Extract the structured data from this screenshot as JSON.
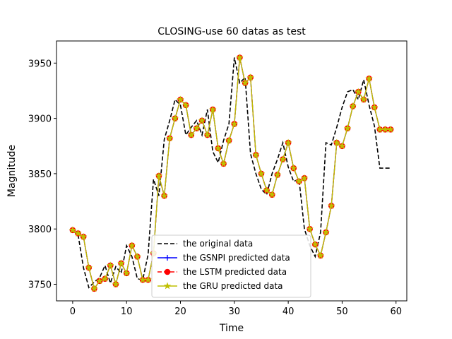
{
  "chart_data": {
    "type": "line",
    "title": "CLOSING-use 60 datas as test",
    "xlabel": "Time",
    "ylabel": "Magnitude",
    "xlim": [
      -3,
      62
    ],
    "ylim": [
      3735,
      3970
    ],
    "xticks": [
      0,
      10,
      20,
      30,
      40,
      50,
      60
    ],
    "yticks": [
      3750,
      3800,
      3850,
      3900,
      3950
    ],
    "grid": false,
    "legend_position": "lower-center",
    "x": [
      0,
      1,
      2,
      3,
      4,
      5,
      6,
      7,
      8,
      9,
      10,
      11,
      12,
      13,
      14,
      15,
      16,
      17,
      18,
      19,
      20,
      21,
      22,
      23,
      24,
      25,
      26,
      27,
      28,
      29,
      30,
      31,
      32,
      33,
      34,
      35,
      36,
      37,
      38,
      39,
      40,
      41,
      42,
      43,
      44,
      45,
      46,
      47,
      48,
      49,
      50,
      51,
      52,
      53,
      54,
      55,
      56,
      57,
      58,
      59
    ],
    "series": [
      {
        "name": "the original data",
        "color": "#000000",
        "style": "dashed",
        "marker": "none",
        "values": [
          3798,
          3795,
          3765,
          3747,
          3752,
          3756,
          3767,
          3751,
          3766,
          3760,
          3785,
          3775,
          3755,
          3754,
          3777,
          3845,
          3830,
          3881,
          3898,
          3917,
          3912,
          3885,
          3892,
          3898,
          3885,
          3908,
          3870,
          3860,
          3880,
          3895,
          3955,
          3932,
          3937,
          3868,
          3850,
          3836,
          3831,
          3850,
          3863,
          3878,
          3856,
          3843,
          3845,
          3800,
          3785,
          3775,
          3797,
          3878,
          3876,
          3892,
          3910,
          3924,
          3926,
          3917,
          3935,
          3912,
          3893,
          3855,
          3855,
          3855
        ]
      },
      {
        "name": "the GSNPI predicted data",
        "color": "#0000ff",
        "style": "solid",
        "marker": "plus",
        "values": [
          3799,
          3796,
          3793,
          3765,
          3746,
          3753,
          3755,
          3767,
          3750,
          3769,
          3760,
          3785,
          3775,
          3754,
          3754,
          3778,
          3848,
          3830,
          3882,
          3900,
          3917,
          3912,
          3885,
          3891,
          3898,
          3885,
          3908,
          3873,
          3859,
          3880,
          3895,
          3955,
          3932,
          3937,
          3867,
          3850,
          3835,
          3831,
          3849,
          3863,
          3878,
          3855,
          3843,
          3846,
          3800,
          3786,
          3776,
          3797,
          3821,
          3878,
          3875,
          3891,
          3911,
          3924,
          3917,
          3936,
          3910,
          3890,
          3890,
          3890
        ]
      },
      {
        "name": "the LSTM predicted data",
        "color": "#ff0000",
        "style": "dashed",
        "marker": "circle",
        "values": [
          3799,
          3796,
          3793,
          3765,
          3746,
          3753,
          3755,
          3767,
          3750,
          3769,
          3760,
          3785,
          3775,
          3754,
          3754,
          3778,
          3848,
          3830,
          3882,
          3900,
          3917,
          3912,
          3885,
          3891,
          3898,
          3885,
          3908,
          3873,
          3859,
          3880,
          3895,
          3955,
          3932,
          3937,
          3867,
          3850,
          3835,
          3831,
          3849,
          3863,
          3878,
          3855,
          3843,
          3846,
          3800,
          3786,
          3776,
          3797,
          3821,
          3878,
          3875,
          3891,
          3911,
          3924,
          3917,
          3936,
          3910,
          3890,
          3890,
          3890
        ]
      },
      {
        "name": "the GRU predicted data",
        "color": "#bfbf00",
        "style": "solid",
        "marker": "star",
        "values": [
          3799,
          3796,
          3793,
          3765,
          3746,
          3753,
          3755,
          3767,
          3750,
          3769,
          3760,
          3785,
          3775,
          3754,
          3754,
          3778,
          3848,
          3830,
          3882,
          3900,
          3917,
          3912,
          3885,
          3891,
          3898,
          3885,
          3908,
          3873,
          3859,
          3880,
          3895,
          3955,
          3932,
          3937,
          3867,
          3850,
          3835,
          3831,
          3849,
          3863,
          3878,
          3855,
          3843,
          3846,
          3800,
          3786,
          3776,
          3797,
          3821,
          3878,
          3875,
          3891,
          3911,
          3924,
          3917,
          3936,
          3910,
          3890,
          3890,
          3890
        ]
      }
    ]
  }
}
